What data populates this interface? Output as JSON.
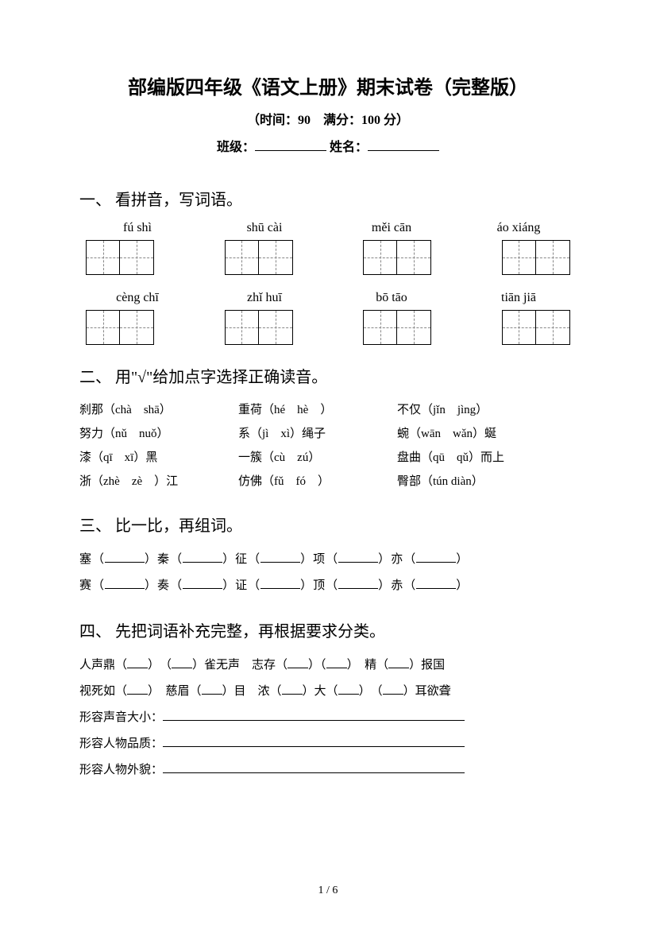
{
  "header": {
    "title": "部编版四年级《语文上册》期末试卷（完整版）",
    "subtitle": "（时间：90　满分：100 分）",
    "class_label": "班级：",
    "name_label": "姓名："
  },
  "section1": {
    "heading": "一、 看拼音，写词语。",
    "row1": [
      "fú shì",
      "shū cài",
      "měi cān",
      "áo xiáng"
    ],
    "row2": [
      "cèng chī",
      "zhǐ huī",
      "bō tāo",
      "tiān jiā"
    ]
  },
  "section2": {
    "heading": "二、 用\"√\"给加点字选择正确读音。",
    "rows": [
      [
        "刹那（chà　shā）",
        "重荷（hé　hè　）",
        "不仅（jǐn　jìng）"
      ],
      [
        "努力（nǔ　nuǒ）",
        "系（jì　xì）绳子",
        "蜿（wān　wǎn）蜒"
      ],
      [
        "漆（qī　xī）黑",
        "一簇（cù　zú）",
        "盘曲（qū　qǔ）而上"
      ],
      [
        "浙（zhè　zè　）江",
        "仿佛（fǔ　fó　）",
        "臀部（tún diàn）"
      ]
    ]
  },
  "section3": {
    "heading": "三、 比一比，再组词。",
    "line1_chars": [
      "塞",
      "秦",
      "征",
      "项",
      "亦"
    ],
    "line2_chars": [
      "赛",
      "奏",
      "证",
      "顶",
      "赤"
    ]
  },
  "section4": {
    "heading": "四、 先把词语补充完整，再根据要求分类。",
    "line1_parts": [
      "人声鼎（",
      "）　（",
      "）雀无声　志存（",
      "）（",
      "）　精（",
      "）报国"
    ],
    "line2_parts": [
      "视死如（",
      "）　慈眉（",
      "）目　浓（",
      "）大（",
      "）　（",
      "）耳欲聋"
    ],
    "cat1": "形容声音大小：",
    "cat2": "形容人物品质：",
    "cat3": "形容人物外貌："
  },
  "footer": {
    "page": "1 / 6"
  }
}
